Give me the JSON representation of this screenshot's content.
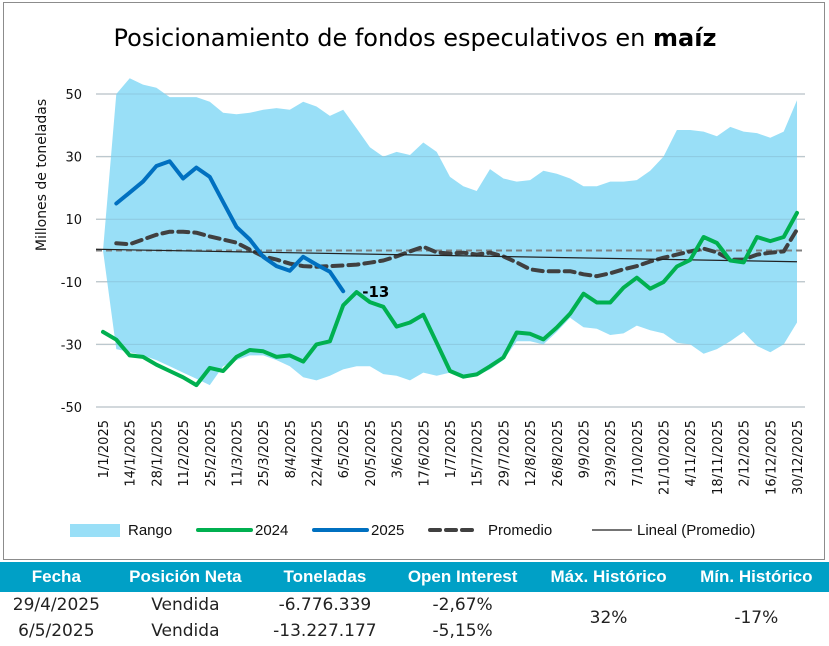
{
  "chart_data": {
    "type": "line",
    "title": "Posicionamiento de fondos especulativos en",
    "title_bold": "maíz",
    "ylabel": "Millones de toneladas",
    "xlabel": "",
    "ylim": [
      -50,
      50
    ],
    "yticks": [
      50,
      30,
      10,
      -10,
      -30,
      -50
    ],
    "ytick_labels": [
      "50",
      "30",
      "10",
      "-10",
      "-30",
      "-50"
    ],
    "grid": true,
    "legend_position": "bottom",
    "x_ticks": [
      "1/1/2025",
      "14/1/2025",
      "28/1/2025",
      "11/2/2025",
      "25/2/2025",
      "11/3/2025",
      "25/3/2025",
      "8/4/2025",
      "22/4/2025",
      "6/5/2025",
      "20/5/2025",
      "3/6/2025",
      "17/6/2025",
      "1/7/2025",
      "15/7/2025",
      "29/7/2025",
      "12/8/2025",
      "26/8/2025",
      "9/9/2025",
      "23/9/2025",
      "7/10/2025",
      "21/10/2025",
      "4/11/2025",
      "18/11/2025",
      "2/12/2025",
      "16/12/2025",
      "30/12/2025"
    ],
    "n_weeks": 53,
    "range": {
      "name": "Rango",
      "color": "#99dff7",
      "upper": [
        0,
        50,
        55,
        53,
        52,
        49,
        49,
        49,
        47.5,
        44,
        43.5,
        44,
        45,
        45.5,
        45,
        47.5,
        46,
        43,
        45,
        39,
        33,
        30,
        31.5,
        30.5,
        34.5,
        31.5,
        23.5,
        20.5,
        19,
        26,
        23,
        22,
        22.5,
        25.5,
        24.5,
        23,
        20.5,
        20.5,
        22,
        22,
        22.5,
        25.5,
        30,
        38.5,
        38.5,
        38,
        36.5,
        39.5,
        38,
        37.5,
        36,
        38,
        48
      ],
      "lower": [
        0,
        -31.5,
        -32.5,
        -33.5,
        -35,
        -37,
        -39,
        -41,
        -43,
        -37,
        -35,
        -33.5,
        -33.5,
        -35,
        -37,
        -40.5,
        -41.5,
        -40,
        -38,
        -37,
        -37,
        -39.5,
        -40,
        -41.5,
        -39,
        -40,
        -39,
        -41,
        -40,
        -38,
        -35,
        -29,
        -29,
        -30,
        -26,
        -21.5,
        -24.5,
        -25,
        -27,
        -26.5,
        -24,
        -25.5,
        -26.5,
        -29.5,
        -30,
        -33,
        -31.5,
        -29,
        -26,
        -30.5,
        -32.5,
        -30,
        -23
      ]
    },
    "series": [
      {
        "name": "2024",
        "color": "#00b050",
        "start_week": 0,
        "values": [
          -26,
          -28.5,
          -33.5,
          -34,
          -36.5,
          -38.5,
          -40.5,
          -43,
          -37.5,
          -38.5,
          -34,
          -31.8,
          -32.2,
          -34,
          -33.5,
          -35.5,
          -30,
          -29,
          -17.5,
          -13.3,
          -16.5,
          -18,
          -24.3,
          -23,
          -20.5,
          -29.5,
          -38.5,
          -40.3,
          -39.6,
          -37,
          -34.2,
          -26.2,
          -26.6,
          -28.4,
          -24.6,
          -20.2,
          -13.8,
          -16.6,
          -16.6,
          -11.9,
          -8.7,
          -12.2,
          -10.1,
          -5.1,
          -3,
          4.3,
          2.4,
          -3.2,
          -3.8,
          4.3,
          3,
          4.3,
          12
        ]
      },
      {
        "name": "2025",
        "color": "#0070c0",
        "start_week": 1,
        "values": [
          15,
          18.5,
          22,
          27,
          28.5,
          23,
          26.5,
          23.5,
          15.5,
          7.5,
          3.5,
          -2,
          -5,
          -6.5,
          -2,
          -4.5,
          -6.8,
          -13
        ]
      },
      {
        "name": "Promedio",
        "color": "#404040",
        "style": "dashed",
        "start_week": 1,
        "values": [
          2.3,
          2,
          3.5,
          5,
          6,
          6,
          5.7,
          4.5,
          3.5,
          2.5,
          0.3,
          -1.9,
          -2.9,
          -4.2,
          -5,
          -5.2,
          -5,
          -4.8,
          -4.5,
          -3.9,
          -3.2,
          -1.9,
          -0.3,
          1.2,
          -0.6,
          -1,
          -0.7,
          -1.3,
          -0.7,
          -1.9,
          -3.8,
          -6,
          -6.6,
          -6.6,
          -6.6,
          -7.6,
          -8.2,
          -7.3,
          -6,
          -5,
          -3.5,
          -2.3,
          -1.3,
          -0.3,
          0.6,
          -0.6,
          -2.9,
          -2.9,
          -1.3,
          -0.7,
          -0.3,
          6.7
        ]
      },
      {
        "name": "Lineal (Promedio)",
        "color": "#222222",
        "style": "thin",
        "start_value": 0.4,
        "end_value": -3.6
      }
    ],
    "reference_line": {
      "value": 0,
      "color": "#808080",
      "style": "dashed"
    },
    "annotations": [
      {
        "text": "-13",
        "series": "2025",
        "week": 18,
        "value": -13
      }
    ],
    "legend": [
      {
        "label": "Rango",
        "kind": "area",
        "color": "#99dff7"
      },
      {
        "label": "2024",
        "kind": "line",
        "color": "#00b050"
      },
      {
        "label": "2025",
        "kind": "line",
        "color": "#0070c0"
      },
      {
        "label": "Promedio",
        "kind": "dashed",
        "color": "#404040"
      },
      {
        "label": "Lineal (Promedio)",
        "kind": "thin",
        "color": "#222222"
      }
    ]
  },
  "table": {
    "header_color": "#00a0c6",
    "headers": [
      "Fecha",
      "Posición Neta",
      "Toneladas",
      "Open Interest",
      "Máx. Histórico",
      "Mín. Histórico"
    ],
    "rows": [
      {
        "fecha": "29/4/2025",
        "posicion": "Vendida",
        "toneladas": "-6.776.339",
        "open_interest": "-2,67%"
      },
      {
        "fecha": "6/5/2025",
        "posicion": "Vendida",
        "toneladas": "-13.227.177",
        "open_interest": "-5,15%"
      }
    ],
    "max_historico": "32%",
    "min_historico": "-17%"
  }
}
